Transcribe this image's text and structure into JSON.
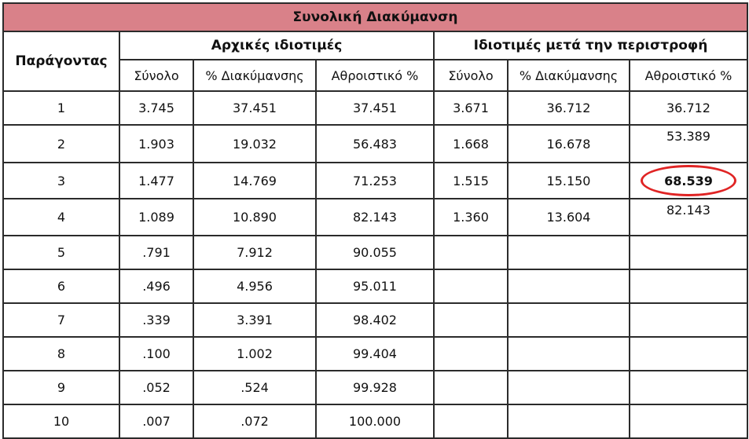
{
  "table": {
    "title": "Συνολική Διακύμανση",
    "factor_header": "Παράγοντας",
    "groups": [
      "Αρχικές ιδιοτιμές",
      "Ιδιοτιμές μετά την περιστροφή"
    ],
    "subheaders": [
      "Σύνολο",
      "% Διακύμανσης",
      "Αθροιστικό %",
      "Σύνολο",
      "% Διακύμανσης",
      "Αθροιστικό %"
    ],
    "rows": [
      [
        "1",
        "3.745",
        "37.451",
        "37.451",
        "3.671",
        "36.712",
        "36.712"
      ],
      [
        "2",
        "1.903",
        "19.032",
        "56.483",
        "1.668",
        "16.678",
        "53.389"
      ],
      [
        "3",
        "1.477",
        "14.769",
        "71.253",
        "1.515",
        "15.150",
        "68.539"
      ],
      [
        "4",
        "1.089",
        "10.890",
        "82.143",
        "1.360",
        "13.604",
        "82.143"
      ],
      [
        "5",
        ".791",
        "7.912",
        "90.055",
        "",
        "",
        ""
      ],
      [
        "6",
        ".496",
        "4.956",
        "95.011",
        "",
        "",
        ""
      ],
      [
        "7",
        ".339",
        "3.391",
        "98.402",
        "",
        "",
        ""
      ],
      [
        "8",
        ".100",
        "1.002",
        "99.404",
        "",
        "",
        ""
      ],
      [
        "9",
        ".052",
        ".524",
        "99.928",
        "",
        "",
        ""
      ],
      [
        "10",
        ".007",
        ".072",
        "100.000",
        "",
        "",
        ""
      ]
    ],
    "highlight_color": "#e02424",
    "title_background": "#d98189"
  }
}
